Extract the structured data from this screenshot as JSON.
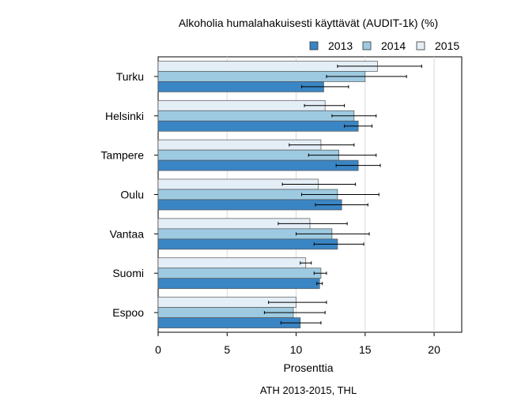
{
  "chart_data": {
    "type": "bar",
    "orientation": "horizontal",
    "title": "Alkoholia humalahakuisesti käyttävät (AUDIT-1k) (%)",
    "xlabel": "Prosenttia",
    "caption": "ATH 2013-2015, THL",
    "xlim": [
      0,
      22
    ],
    "xticks": [
      0,
      5,
      10,
      15,
      20
    ],
    "grid": "vertical",
    "legend_position": "top-right",
    "categories": [
      "Turku",
      "Helsinki",
      "Tampere",
      "Oulu",
      "Vantaa",
      "Suomi",
      "Espoo"
    ],
    "series": [
      {
        "name": "2013",
        "color": "#3a85c4",
        "values": [
          12.0,
          14.5,
          14.5,
          13.3,
          13.0,
          11.7,
          10.3
        ],
        "err_low": [
          10.4,
          13.5,
          12.9,
          11.4,
          11.3,
          11.5,
          8.9
        ],
        "err_high": [
          13.8,
          15.5,
          16.1,
          15.2,
          14.9,
          11.9,
          11.8
        ]
      },
      {
        "name": "2014",
        "color": "#9dcae1",
        "values": [
          15.0,
          14.2,
          13.1,
          13.0,
          12.6,
          11.8,
          9.8
        ],
        "err_low": [
          12.2,
          12.6,
          10.9,
          10.4,
          10.0,
          11.3,
          7.7
        ],
        "err_high": [
          18.0,
          15.8,
          15.8,
          16.0,
          15.3,
          12.2,
          12.1
        ]
      },
      {
        "name": "2015",
        "color": "#e4eef7",
        "values": [
          15.9,
          12.1,
          11.8,
          11.6,
          11.0,
          10.7,
          10.0
        ],
        "err_low": [
          13.0,
          10.6,
          9.5,
          9.0,
          8.7,
          10.3,
          8.0
        ],
        "err_high": [
          19.1,
          13.5,
          14.2,
          14.3,
          13.7,
          11.1,
          12.2
        ]
      }
    ]
  }
}
